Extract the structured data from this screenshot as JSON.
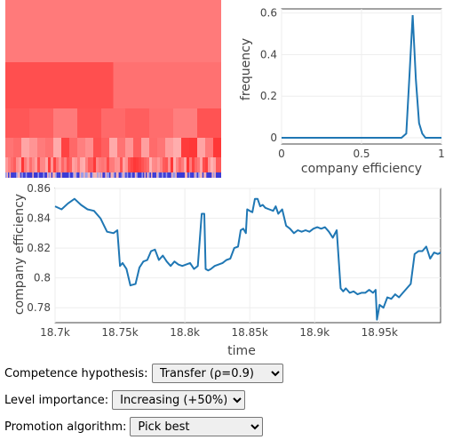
{
  "heatmap": {
    "rows": [
      {
        "cells": 1,
        "alphas": [
          0.62
        ]
      },
      {
        "cells": 1,
        "alphas": [
          0.6
        ]
      },
      {
        "cells": 2,
        "alphas": [
          0.82,
          0.66
        ]
      },
      {
        "cells": 9,
        "alphas": [
          0.78,
          0.74,
          0.62,
          0.8,
          0.7,
          0.75,
          0.68,
          0.6,
          0.8
        ]
      },
      {
        "cells": 27,
        "alphas": []
      },
      {
        "cells": 81,
        "alphas": []
      }
    ],
    "blue_strip": true
  },
  "histogram": {
    "type": "line",
    "x": [
      0,
      0.05,
      0.1,
      0.15,
      0.2,
      0.25,
      0.3,
      0.35,
      0.4,
      0.45,
      0.5,
      0.55,
      0.6,
      0.65,
      0.7,
      0.75,
      0.78,
      0.8,
      0.82,
      0.84,
      0.86,
      0.88,
      0.9,
      0.95,
      1.0
    ],
    "y": [
      0,
      0,
      0,
      0,
      0,
      0,
      0,
      0,
      0,
      0,
      0,
      0,
      0,
      0,
      0,
      0,
      0.02,
      0.3,
      0.59,
      0.28,
      0.07,
      0.02,
      0,
      0,
      0
    ],
    "xlim": [
      0,
      1
    ],
    "ylim": [
      -0.03,
      0.62
    ],
    "xticks": [
      "0",
      "0.5",
      "1"
    ],
    "xtick_values": [
      0,
      0.5,
      1
    ],
    "yticks": [
      "0",
      "0.2",
      "0.4",
      "0.6"
    ],
    "ytick_values": [
      0,
      0.2,
      0.4,
      0.6
    ],
    "xlabel": "company efficiency",
    "ylabel": "frequency",
    "line_color": "#1f77b4"
  },
  "timeseries": {
    "type": "line",
    "x": [
      18700,
      18705,
      18710,
      18715,
      18720,
      18725,
      18730,
      18735,
      18740,
      18745,
      18748,
      18750,
      18752,
      18755,
      18758,
      18762,
      18765,
      18768,
      18771,
      18774,
      18777,
      18780,
      18783,
      18786,
      18789,
      18792,
      18795,
      18798,
      18801,
      18804,
      18807,
      18810,
      18813,
      18814,
      18815,
      18816,
      18818,
      18820,
      18823,
      18826,
      18829,
      18832,
      18835,
      18838,
      18841,
      18843,
      18845,
      18847,
      18848,
      18850,
      18852,
      18854,
      18856,
      18858,
      18860,
      18862,
      18865,
      18868,
      18870,
      18872,
      18875,
      18878,
      18881,
      18884,
      18887,
      18890,
      18893,
      18896,
      18899,
      18902,
      18905,
      18908,
      18911,
      18914,
      18917,
      18920,
      18922,
      18924,
      18927,
      18930,
      18933,
      18936,
      18939,
      18942,
      18945,
      18947,
      18948,
      18950,
      18953,
      18956,
      18959,
      18962,
      18965,
      18968,
      18971,
      18974,
      18977,
      18980,
      18983,
      18986,
      18989,
      18992,
      18995,
      18997
    ],
    "y": [
      0.848,
      0.846,
      0.85,
      0.853,
      0.849,
      0.846,
      0.845,
      0.84,
      0.831,
      0.83,
      0.832,
      0.808,
      0.81,
      0.806,
      0.795,
      0.796,
      0.807,
      0.811,
      0.812,
      0.818,
      0.819,
      0.812,
      0.815,
      0.811,
      0.808,
      0.811,
      0.809,
      0.808,
      0.809,
      0.81,
      0.806,
      0.808,
      0.843,
      0.843,
      0.843,
      0.806,
      0.805,
      0.806,
      0.808,
      0.809,
      0.81,
      0.812,
      0.813,
      0.82,
      0.821,
      0.832,
      0.833,
      0.83,
      0.846,
      0.845,
      0.844,
      0.853,
      0.853,
      0.848,
      0.849,
      0.847,
      0.846,
      0.845,
      0.848,
      0.843,
      0.846,
      0.835,
      0.833,
      0.83,
      0.832,
      0.831,
      0.832,
      0.831,
      0.833,
      0.834,
      0.833,
      0.834,
      0.831,
      0.827,
      0.832,
      0.793,
      0.791,
      0.793,
      0.79,
      0.791,
      0.789,
      0.79,
      0.79,
      0.792,
      0.79,
      0.792,
      0.772,
      0.782,
      0.78,
      0.787,
      0.786,
      0.789,
      0.787,
      0.79,
      0.793,
      0.796,
      0.816,
      0.818,
      0.818,
      0.821,
      0.813,
      0.817,
      0.816,
      0.817
    ],
    "xlim": [
      18700,
      18997
    ],
    "ylim": [
      0.77,
      0.86
    ],
    "xticks": [
      "18.7k",
      "18.75k",
      "18.8k",
      "18.85k",
      "18.9k",
      "18.95k"
    ],
    "xtick_values": [
      18700,
      18750,
      18800,
      18850,
      18900,
      18950
    ],
    "yticks": [
      "0.78",
      "0.8",
      "0.82",
      "0.84",
      "0.86"
    ],
    "ytick_values": [
      0.78,
      0.8,
      0.82,
      0.84,
      0.86
    ],
    "xlabel": "time",
    "ylabel": "company efficiency",
    "line_color": "#1f77b4"
  },
  "controls": {
    "competence": {
      "label": "Competence hypothesis:",
      "value": "Transfer (ρ=0.9)"
    },
    "level": {
      "label": "Level importance:",
      "value": "Increasing (+50%)"
    },
    "promotion": {
      "label": "Promotion algorithm:",
      "value": "Pick best"
    }
  }
}
